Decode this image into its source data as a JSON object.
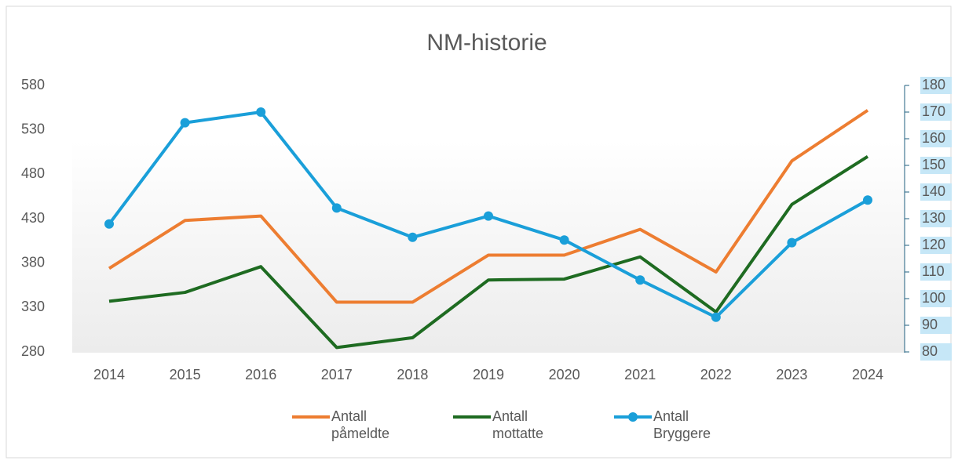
{
  "chart_data": {
    "type": "line",
    "title": "NM-historie",
    "categories": [
      "2014",
      "2015",
      "2016",
      "2017",
      "2018",
      "2019",
      "2020",
      "2021",
      "2022",
      "2023",
      "2024"
    ],
    "series": [
      {
        "name": "Antall påmeldte",
        "color": "#ed7d31",
        "values": [
          374,
          428,
          433,
          336,
          336,
          389,
          389,
          418,
          370,
          495,
          552
        ]
      },
      {
        "name": "Antall mottatte",
        "color": "#1e6b21",
        "values": [
          337,
          347,
          376,
          285,
          296,
          361,
          362,
          387,
          325,
          446,
          500
        ]
      },
      {
        "name": "Antall Bryggere",
        "color": "#1a9fd9",
        "axis": "y2",
        "markers": true,
        "values": [
          128,
          166,
          170,
          134,
          123,
          131,
          122,
          107,
          93,
          121,
          137
        ]
      }
    ],
    "ylim": [
      280,
      580
    ],
    "yticks": [
      280,
      330,
      380,
      430,
      480,
      530,
      580
    ],
    "y2lim": [
      80,
      180
    ],
    "y2ticks": [
      80,
      90,
      100,
      110,
      120,
      130,
      140,
      150,
      160,
      170,
      180
    ],
    "grid": false,
    "legend": "bottom"
  }
}
